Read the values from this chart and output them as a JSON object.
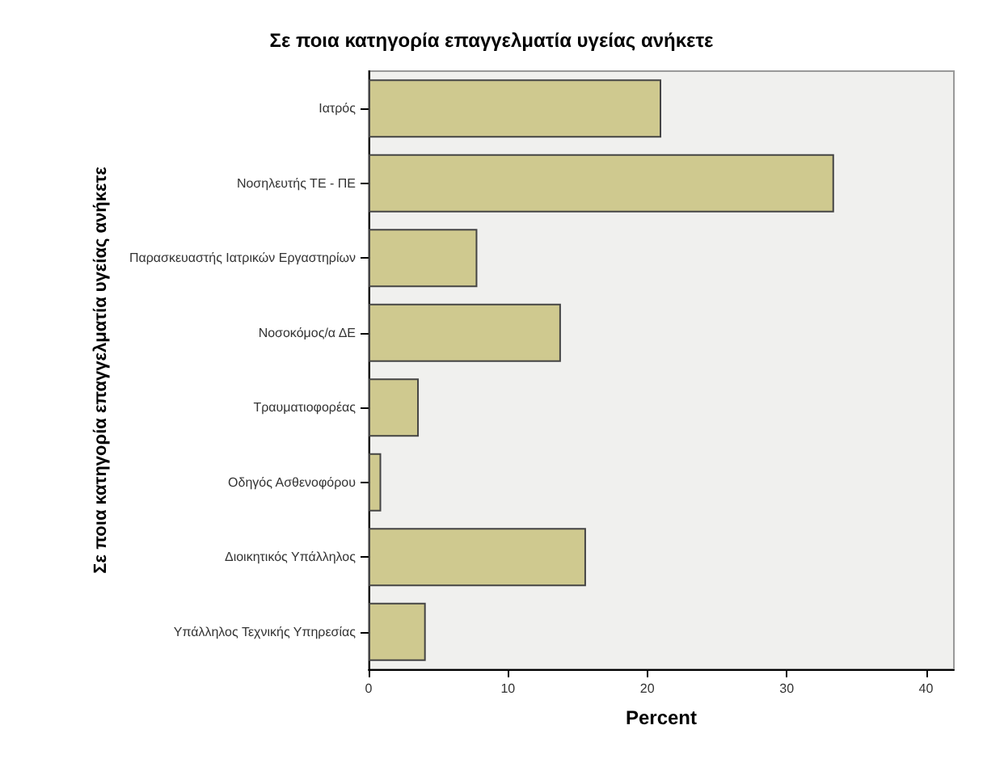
{
  "chart_data": {
    "type": "bar",
    "orientation": "horizontal",
    "title": "Σε ποια κατηγορία επαγγελματία υγείας ανήκετε",
    "xlabel": "Percent",
    "ylabel": "Σε ποια κατηγορία επαγγελματία υγείας ανήκετε",
    "categories": [
      "Ιατρός",
      "Νοσηλευτής ΤΕ - ΠΕ",
      "Παρασκευαστής Ιατρικών Εργαστηρίων",
      "Νοσοκόμος/α ΔΕ",
      "Τραυματιοφορέας",
      "Οδηγός Ασθενοφόρου",
      "Διοικητικός Υπάλληλος",
      "Υπάλληλος Τεχνικής Υπηρεσίας"
    ],
    "values": [
      21.0,
      33.4,
      7.8,
      13.8,
      3.6,
      0.9,
      15.6,
      4.1
    ],
    "color": "#cfc98f",
    "xlim": [
      0,
      42
    ],
    "xticks": [
      0,
      10,
      20,
      30,
      40
    ],
    "grid": false
  }
}
